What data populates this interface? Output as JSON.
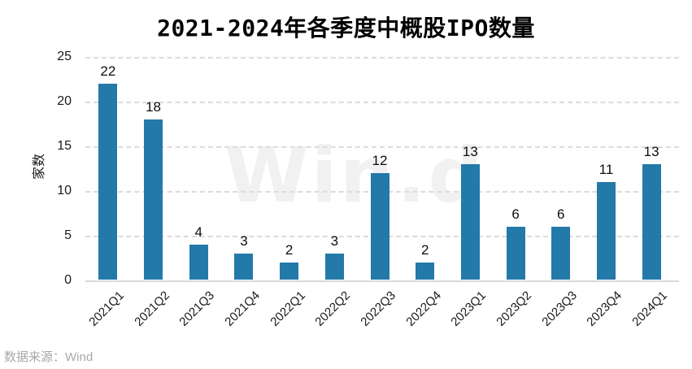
{
  "title": "2021-2024年各季度中概股IPO数量",
  "source_note": "数据来源：Wind",
  "watermark_text": "Win.d",
  "colors": {
    "bar": "#2379A8",
    "gridline": "#dcdcdc",
    "baseline": "#d9d9d9",
    "watermark": "#f1f1f1",
    "source_text": "#a8a8a8",
    "background": "#ffffff"
  },
  "chart_data": {
    "type": "bar",
    "title": "2021-2024年各季度中概股IPO数量",
    "categories": [
      "2021Q1",
      "2021Q2",
      "2021Q3",
      "2021Q4",
      "2022Q1",
      "2022Q2",
      "2022Q3",
      "2022Q4",
      "2023Q1",
      "2023Q2",
      "2023Q3",
      "2023Q4",
      "2024Q1"
    ],
    "values": [
      22,
      18,
      4,
      3,
      2,
      3,
      12,
      2,
      13,
      6,
      6,
      11,
      13
    ],
    "xlabel": "",
    "ylabel": "家数",
    "ylim": [
      0,
      25
    ],
    "yticks": [
      0,
      5,
      10,
      15,
      20,
      25
    ],
    "grid": "horizontal-dashed",
    "legend": "none",
    "value_labels": true,
    "bar_color": "#2379A8"
  }
}
